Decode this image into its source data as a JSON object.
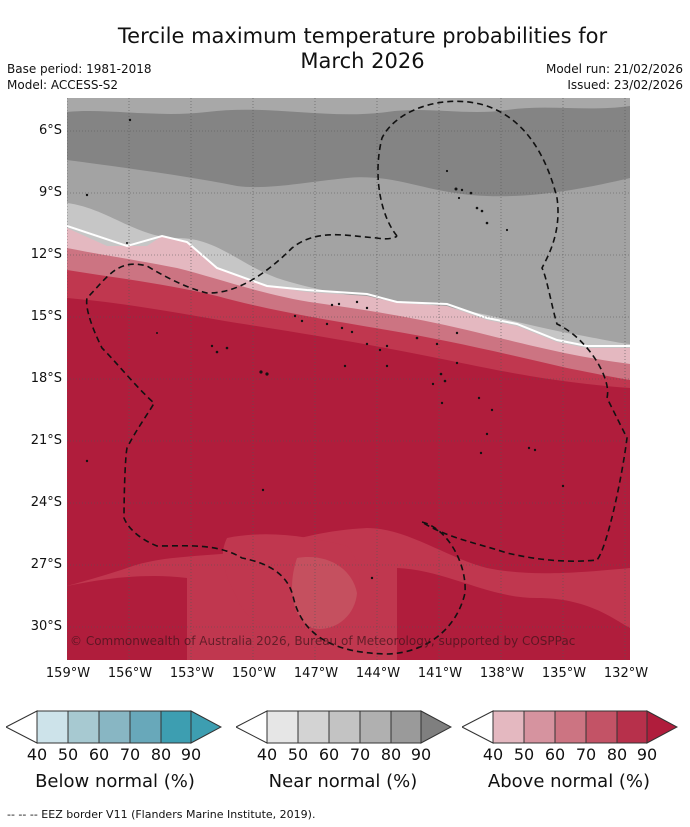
{
  "title_line1": "Tercile maximum temperature probabilities for",
  "title_line2": "March 2026",
  "left_meta": [
    "Base period: 1981-2018",
    "Model: ACCESS-S2"
  ],
  "right_meta": [
    "Model run: 21/02/2026",
    "Issued: 23/02/2026"
  ],
  "lat_labels": [
    "6°S",
    "9°S",
    "12°S",
    "15°S",
    "18°S",
    "21°S",
    "24°S",
    "27°S",
    "30°S"
  ],
  "lon_labels": [
    "159°W",
    "156°W",
    "153°W",
    "150°W",
    "147°W",
    "144°W",
    "141°W",
    "138°W",
    "135°W",
    "132°W"
  ],
  "copyright": "© Commonwealth of Australia 2026, Bureau of Meteorology, supported by COSPPac",
  "colorbars": [
    {
      "name": "below",
      "title": "Below normal (%)",
      "ticks": [
        "40",
        "50",
        "60",
        "70",
        "80",
        "90"
      ],
      "colors": [
        "#ffffff",
        "#cde3ea",
        "#a7c9d1",
        "#88b6c3",
        "#68a8ba",
        "#3d9eb1"
      ]
    },
    {
      "name": "near",
      "title": "Near normal (%)",
      "ticks": [
        "40",
        "50",
        "60",
        "70",
        "80",
        "90"
      ],
      "colors": [
        "#ffffff",
        "#e6e6e6",
        "#d3d3d3",
        "#c3c3c3",
        "#b0b0b0",
        "#9a9a9a",
        "#7f7f7f"
      ]
    },
    {
      "name": "above",
      "title": "Above normal (%)",
      "ticks": [
        "40",
        "50",
        "60",
        "70",
        "80",
        "90"
      ],
      "colors": [
        "#ffffff",
        "#e4b8c0",
        "#d6939f",
        "#cc7482",
        "#c35366",
        "#b7304b",
        "#b01d3c"
      ]
    }
  ],
  "footer": "--  --  -- EEZ border V11 (Flanders Marine Institute, 2019).",
  "colors": {
    "above_dark": "#b01d3c",
    "above_mid": "#c0374f",
    "near_dark": "#848484",
    "near_mid": "#a3a3a3",
    "near_light": "#c6c6c6"
  }
}
